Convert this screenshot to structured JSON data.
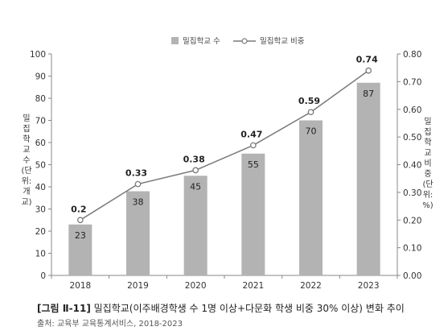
{
  "chart_data": {
    "type": "bar+line",
    "categories": [
      "2018",
      "2019",
      "2020",
      "2021",
      "2022",
      "2023"
    ],
    "series": [
      {
        "name": "밀집학교 수",
        "type": "bar",
        "axis": "left",
        "values": [
          23,
          38,
          45,
          55,
          70,
          87
        ],
        "color": "#b3b3b3"
      },
      {
        "name": "밀집학교 비중",
        "type": "line",
        "axis": "right",
        "values": [
          0.2,
          0.33,
          0.38,
          0.47,
          0.59,
          0.74
        ],
        "color": "#7a7a7a"
      }
    ],
    "line_labels": [
      "0.2",
      "0.33",
      "0.38",
      "0.47",
      "0.59",
      "0.74"
    ],
    "y_left": {
      "label": "밀집학교 수(단위: 개교)",
      "ylim": [
        0,
        100
      ],
      "ticks": [
        "0",
        "10",
        "20",
        "30",
        "40",
        "50",
        "60",
        "70",
        "80",
        "90",
        "100"
      ]
    },
    "y_right": {
      "label": "밀집학교 비중(단위: %)",
      "ylim": [
        0,
        0.8
      ],
      "ticks": [
        "0.00",
        "0.10",
        "0.20",
        "0.30",
        "0.40",
        "0.50",
        "0.60",
        "0.70",
        "0.80"
      ]
    },
    "grid": false,
    "legend_position": "top-center"
  },
  "caption": {
    "figure_no": "[그림 Ⅱ-11]",
    "title": "밀집학교(이주배경학생 수 1명 이상+다문화 학생 비중 30% 이상) 변화 추이"
  },
  "source": "출처: 교육부 교육통계서비스, 2018-2023"
}
